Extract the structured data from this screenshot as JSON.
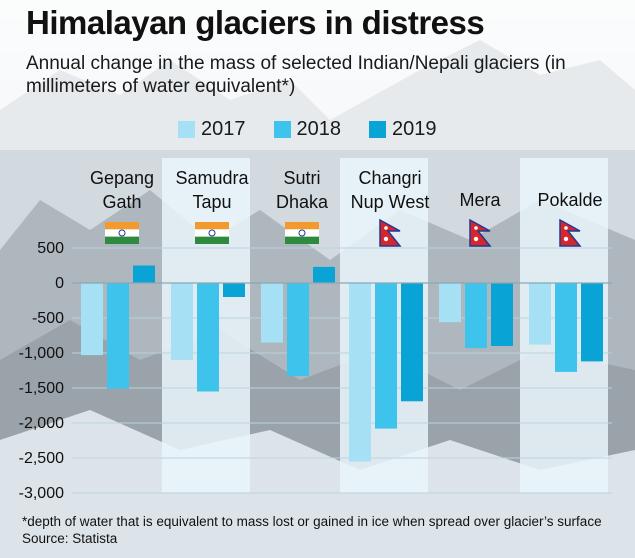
{
  "header": {
    "title": "Himalayan glaciers in distress",
    "subtitle": "Annual change in the mass of selected Indian/Nepali glaciers (in  millimeters of water equivalent*)"
  },
  "footer": {
    "footnote": "*depth of water that is equivalent to mass lost or gained in ice when spread over glacier’s surface",
    "source": "Source: Statista"
  },
  "colors": {
    "y2017": "#a6e0f5",
    "y2018": "#3ec3ec",
    "y2019": "#0aa3d6",
    "panel": "#eaf6fb",
    "grid": "#b9d3dd"
  },
  "chart_data": {
    "type": "bar",
    "title": "Himalayan glaciers in distress",
    "ylim": [
      -3000,
      500
    ],
    "yticks": [
      500,
      0,
      -500,
      -1000,
      -1500,
      -2000,
      -2500,
      -3000
    ],
    "ytick_labels": [
      "500",
      "0",
      "-500",
      "-1,000",
      "-1,500",
      "-2,000",
      "-2,500",
      "-3,000"
    ],
    "grid": true,
    "legend_position": "top",
    "categories": [
      {
        "name": [
          "Gepang",
          "Gath"
        ],
        "country": "India"
      },
      {
        "name": [
          "Samudra",
          "Tapu"
        ],
        "country": "India"
      },
      {
        "name": [
          "Sutri",
          "Dhaka"
        ],
        "country": "India"
      },
      {
        "name": [
          "Changri",
          "Nup West"
        ],
        "country": "Nepal"
      },
      {
        "name": [
          "Mera"
        ],
        "country": "Nepal"
      },
      {
        "name": [
          "Pokalde"
        ],
        "country": "Nepal"
      }
    ],
    "series": [
      {
        "name": "2017",
        "values": [
          -1030,
          -1100,
          -850,
          -2550,
          -560,
          -880
        ]
      },
      {
        "name": "2018",
        "values": [
          -1510,
          -1550,
          -1330,
          -2080,
          -930,
          -1270
        ]
      },
      {
        "name": "2019",
        "values": [
          250,
          -200,
          230,
          -1690,
          -900,
          -1120
        ]
      }
    ]
  }
}
